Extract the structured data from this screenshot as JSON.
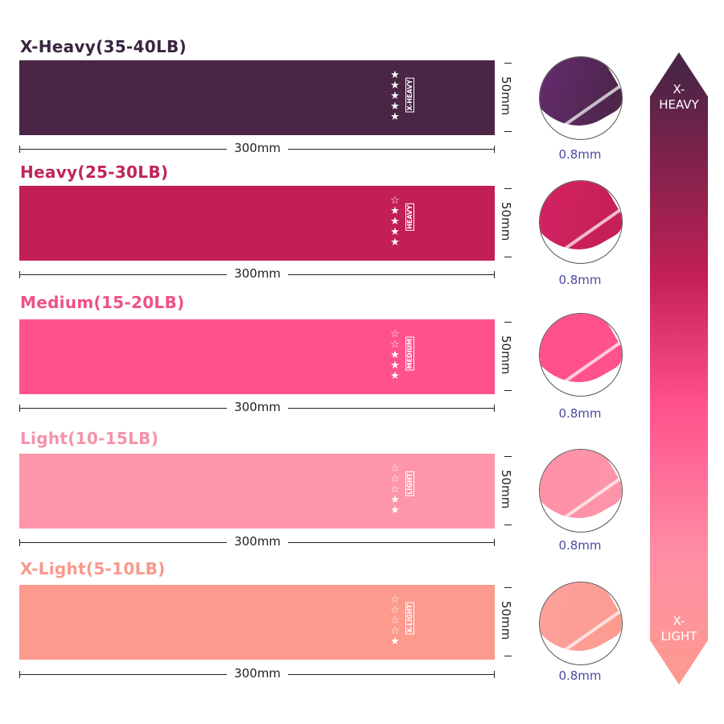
{
  "bands": [
    {
      "title": "X-Heavy(35-40LB)",
      "tag": "X-HEAVY",
      "stars_filled": 5,
      "color": "#4a2545",
      "title_color": "#3a2540",
      "circle_color": "#6a2d78"
    },
    {
      "title": "Heavy(25-30LB)",
      "tag": "HEAVY",
      "stars_filled": 4,
      "color": "#c21f55",
      "title_color": "#c0245a",
      "circle_color": "#d82466"
    },
    {
      "title": "Medium(15-20LB)",
      "tag": "MEDIUM",
      "stars_filled": 3,
      "color": "#ff528c",
      "title_color": "#f0508a",
      "circle_color": "#ff4f8e"
    },
    {
      "title": "Light(10-15LB)",
      "tag": "LIGHT",
      "stars_filled": 2,
      "color": "#fe95a9",
      "title_color": "#f593a9",
      "circle_color": "#ff8fa6"
    },
    {
      "title": "X-Light(5-10LB)",
      "tag": "X-LIGHT",
      "stars_filled": 1,
      "color": "#fd9a8e",
      "title_color": "#f8998c",
      "circle_color": "#fba3a0"
    }
  ],
  "stars_total": 5,
  "length_label": "300mm",
  "width_label": "50mm",
  "thickness_label": "0.8mm",
  "scale": {
    "top_label": "X-\nHEAVY",
    "bottom_label": "X-\nLIGHT"
  }
}
